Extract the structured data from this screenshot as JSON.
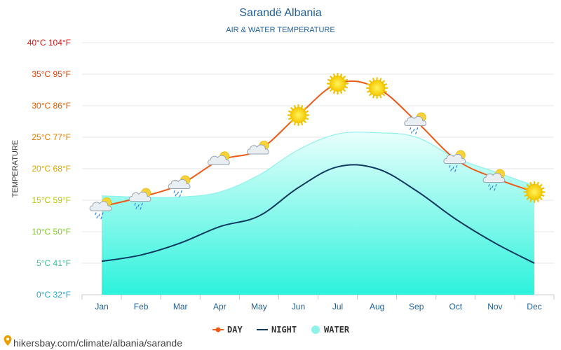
{
  "chart_data": {
    "type": "line",
    "title": "Sarandë Albania",
    "subtitle": "AIR & WATER TEMPERATURE",
    "ylabel": "TEMPERATURE",
    "categories": [
      "Jan",
      "Feb",
      "Mar",
      "Apr",
      "May",
      "Jun",
      "Jul",
      "Aug",
      "Sep",
      "Oct",
      "Nov",
      "Dec"
    ],
    "y_ticks": [
      {
        "value": 0,
        "label": "0°C 32°F",
        "color": "#2aa7c4"
      },
      {
        "value": 5,
        "label": "5°C 41°F",
        "color": "#3bbf9a"
      },
      {
        "value": 10,
        "label": "10°C 50°F",
        "color": "#7ecf26"
      },
      {
        "value": 15,
        "label": "15°C 59°F",
        "color": "#b8c800"
      },
      {
        "value": 20,
        "label": "20°C 68°F",
        "color": "#dba600"
      },
      {
        "value": 25,
        "label": "25°C 77°F",
        "color": "#e07d00"
      },
      {
        "value": 30,
        "label": "30°C 86°F",
        "color": "#e05a00"
      },
      {
        "value": 35,
        "label": "35°C 95°F",
        "color": "#e03a00"
      },
      {
        "value": 40,
        "label": "40°C 104°F",
        "color": "#d81e1e"
      }
    ],
    "ylim": [
      0,
      40
    ],
    "grid": true,
    "legend_placement": "bottom",
    "series": [
      {
        "name": "DAY",
        "color": "#ee5a16",
        "values": [
          14,
          15.5,
          17.5,
          21.3,
          23,
          28.5,
          33.5,
          32.8,
          27.5,
          21.5,
          18.5,
          16.3
        ]
      },
      {
        "name": "NIGHT",
        "color": "#0c3b5e",
        "values": [
          5.3,
          6.3,
          8.2,
          10.8,
          12.5,
          17,
          20.3,
          20,
          16.5,
          12,
          8.2,
          5
        ]
      },
      {
        "name": "WATER",
        "color": "#8ff2ea",
        "values": [
          15.7,
          15.5,
          15.5,
          16.3,
          19,
          23,
          25.5,
          25.7,
          25,
          21.7,
          19.5,
          17.3
        ]
      }
    ],
    "weather_icons": [
      "cloud-rain-sun",
      "cloud-rain-sun",
      "cloud-rain-sun",
      "cloud-sun",
      "cloud-sun",
      "sun",
      "sun",
      "sun",
      "cloud-rain-sun",
      "cloud-rain-sun",
      "cloud-rain-sun",
      "sun"
    ]
  },
  "source": "hikersbay.com/climate/albania/sarande"
}
